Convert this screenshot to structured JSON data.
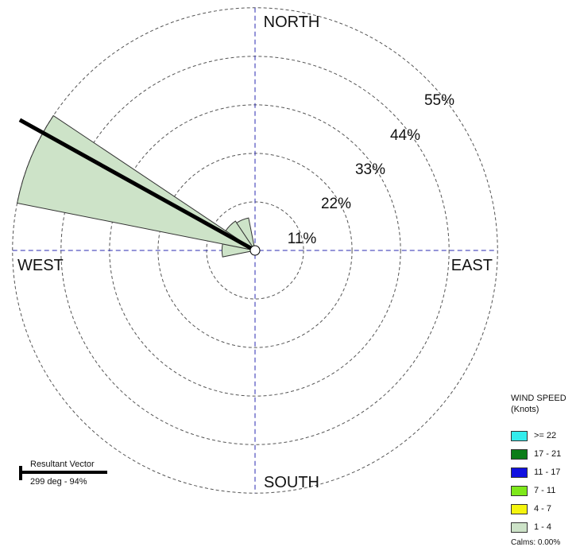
{
  "chart_data": {
    "type": "wind-rose",
    "directions": {
      "north": "NORTH",
      "south": "SOUTH",
      "east": "EAST",
      "west": "WEST"
    },
    "ring_labels": [
      "11%",
      "22%",
      "33%",
      "44%",
      "55%"
    ],
    "ring_values": [
      11,
      22,
      33,
      44,
      55
    ],
    "sector_width_deg": 22.5,
    "series": [
      {
        "name": "1 - 4",
        "color": "#cde3c8",
        "sectors": [
          {
            "direction_deg": 270,
            "percent": 7.5
          },
          {
            "direction_deg": 292.5,
            "percent": 55
          },
          {
            "direction_deg": 315,
            "percent": 8
          },
          {
            "direction_deg": 337.5,
            "percent": 7.5
          }
        ]
      }
    ],
    "resultant_vector": {
      "title": "Resultant Vector",
      "label": "299 deg - 94%",
      "direction_deg": 299,
      "percent": 61
    },
    "legend": {
      "title_line1": "WIND SPEED",
      "title_line2": "(Knots)",
      "items": [
        {
          "label": ">= 22",
          "color": "#33ecec"
        },
        {
          "label": "17 - 21",
          "color": "#0c7d18"
        },
        {
          "label": "11 - 17",
          "color": "#1010e0"
        },
        {
          "label": "7 - 11",
          "color": "#7ee81a"
        },
        {
          "label": "4 - 7",
          "color": "#f4f40e"
        },
        {
          "label": "1 - 4",
          "color": "#cde3c8"
        }
      ],
      "calms": "Calms: 0.00%"
    },
    "grid": true,
    "legend_position": "bottom-right"
  }
}
